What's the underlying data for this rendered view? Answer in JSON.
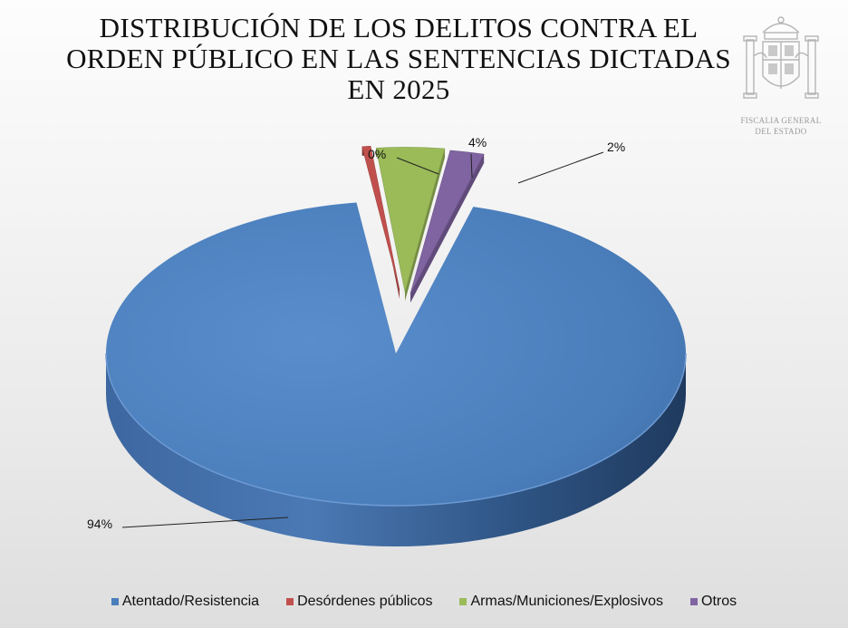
{
  "chart_data": {
    "type": "pie",
    "title_lines": [
      "DISTRIBUCIÓN DE LOS DELITOS CONTRA EL",
      "ORDEN PÚBLICO EN LAS SENTENCIAS DICTADAS",
      "EN 2025"
    ],
    "slices": [
      {
        "label": "Atentado/Resistencia",
        "value": 94,
        "display": "94%",
        "color": "#4a7ebb"
      },
      {
        "label": "Desórdenes públicos",
        "value": 0.5,
        "display": "0%",
        "color": "#c0504d"
      },
      {
        "label": "Armas/Municiones/Explosivos",
        "value": 4,
        "display": "4%",
        "color": "#9bbb59"
      },
      {
        "label": "Otros",
        "value": 2,
        "display": "2%",
        "color": "#8064a2"
      }
    ],
    "legend_position": "bottom",
    "style": "3d-exploded"
  },
  "logo": {
    "line1": "FISCALIA GENERAL",
    "line2": "DEL ESTADO"
  }
}
